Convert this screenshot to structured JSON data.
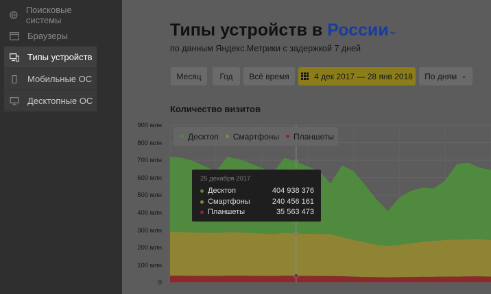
{
  "sidebar": {
    "items": [
      {
        "label": "Поисковые системы",
        "icon": "globe-icon"
      },
      {
        "label": "Браузеры",
        "icon": "browser-window-icon"
      },
      {
        "label": "Типы устройств",
        "icon": "devices-icon"
      },
      {
        "label": "Мобильные ОС",
        "icon": "phone-icon"
      },
      {
        "label": "Десктопные ОС",
        "icon": "monitor-icon"
      }
    ]
  },
  "header": {
    "title_prefix": "Типы устройств в",
    "title_region": "России",
    "subtitle": "по данным Яндекс.Метрики с задержкой 7 дней"
  },
  "controls": {
    "month": "Месяц",
    "year": "Год",
    "all_time": "Всё время",
    "date_range": "4 дек 2017 — 28 янв 2018",
    "group_by": "По дням"
  },
  "chart_title": "Количество визитов",
  "chart_data": {
    "type": "area",
    "title": "Количество визитов",
    "y_ticks": [
      "900 млн",
      "800 млн",
      "700 млн",
      "600 млн",
      "500 млн",
      "400 млн",
      "300 млн",
      "200 млн",
      "100 млн",
      "0"
    ],
    "ylim": [
      0,
      900000000
    ],
    "grid": true,
    "legend_placement": "top-left",
    "series": [
      {
        "name": "Десктоп",
        "color": "#4f8a3f",
        "values": [
          430000000,
          425000000,
          410000000,
          380000000,
          355000000,
          430000000,
          420000000,
          400000000,
          375000000,
          355000000,
          430000000,
          410000000,
          385000000,
          360000000,
          290000000,
          410000000,
          395000000,
          330000000,
          260000000,
          200000000,
          270000000,
          300000000,
          310000000,
          300000000,
          340000000,
          430000000,
          440000000,
          410000000,
          400000000
        ]
      },
      {
        "name": "Смартфоны",
        "color": "#8f8434",
        "values": [
          250000000,
          250000000,
          248000000,
          248000000,
          246000000,
          250000000,
          248000000,
          245000000,
          243000000,
          240000000,
          245000000,
          243000000,
          242000000,
          241000000,
          240000000,
          225000000,
          210000000,
          198000000,
          186000000,
          180000000,
          185000000,
          192000000,
          200000000,
          205000000,
          210000000,
          212000000,
          212000000,
          213000000,
          210000000
        ]
      },
      {
        "name": "Планшеты",
        "color": "#8a2a2a",
        "values": [
          38000000,
          38000000,
          37000000,
          37000000,
          36000000,
          38000000,
          38000000,
          37000000,
          37000000,
          36000000,
          38000000,
          37000000,
          37000000,
          36000000,
          36000000,
          35000000,
          33000000,
          31000000,
          30000000,
          29000000,
          30000000,
          31000000,
          32000000,
          32000000,
          33000000,
          33000000,
          34000000,
          34000000,
          33000000
        ]
      }
    ]
  },
  "tooltip": {
    "date": "25 декабря 2017",
    "rows": [
      {
        "name": "Десктоп",
        "value": "404 938 376"
      },
      {
        "name": "Смартфоны",
        "value": "240 456 161"
      },
      {
        "name": "Планшеты",
        "value": "35 563 473"
      }
    ]
  },
  "colors": {
    "desktop": "#4f8a3f",
    "smartphones": "#8f8434",
    "tablets": "#8a2a2a",
    "accent": "#1a3b9e"
  }
}
